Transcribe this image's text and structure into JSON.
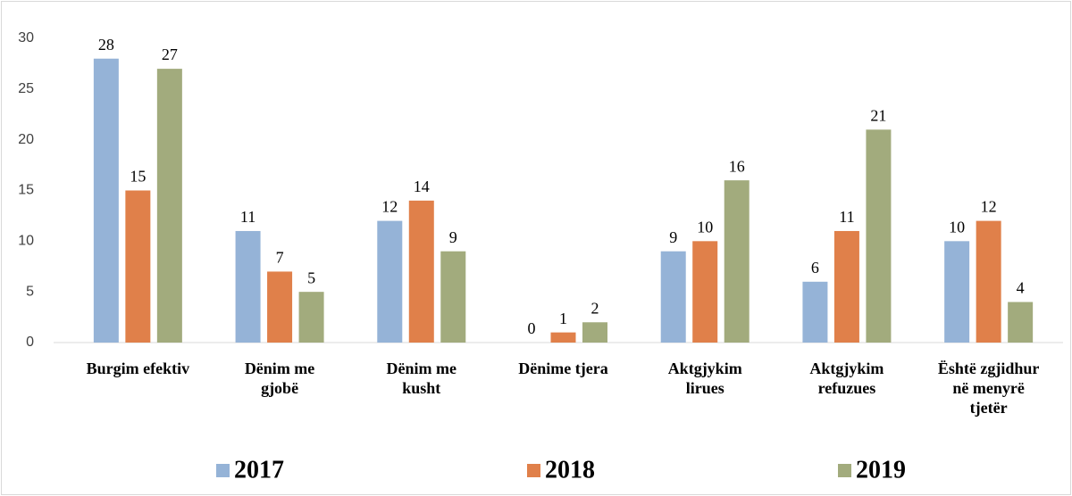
{
  "chart_data": {
    "type": "bar",
    "categories": [
      "Burgim efektiv",
      "Dënim me\ngjobë",
      "Dënim me\nkusht",
      "Dënime tjera",
      "Aktgjykim\nlirues",
      "Aktgjykim\nrefuzues",
      "Është zgjidhur\nnë menyrë\ntjetër"
    ],
    "series": [
      {
        "name": "2017",
        "color": "#95b3d7",
        "values": [
          28,
          11,
          12,
          0,
          9,
          6,
          10
        ]
      },
      {
        "name": "2018",
        "color": "#e0804a",
        "values": [
          15,
          7,
          14,
          1,
          10,
          11,
          12
        ]
      },
      {
        "name": "2019",
        "color": "#a2ab7d",
        "values": [
          27,
          5,
          9,
          2,
          16,
          21,
          4
        ]
      }
    ],
    "ylim": [
      0,
      30
    ],
    "yticks": [
      0,
      5,
      10,
      15,
      20,
      25,
      30
    ],
    "grid": false,
    "legend": "bottom"
  }
}
